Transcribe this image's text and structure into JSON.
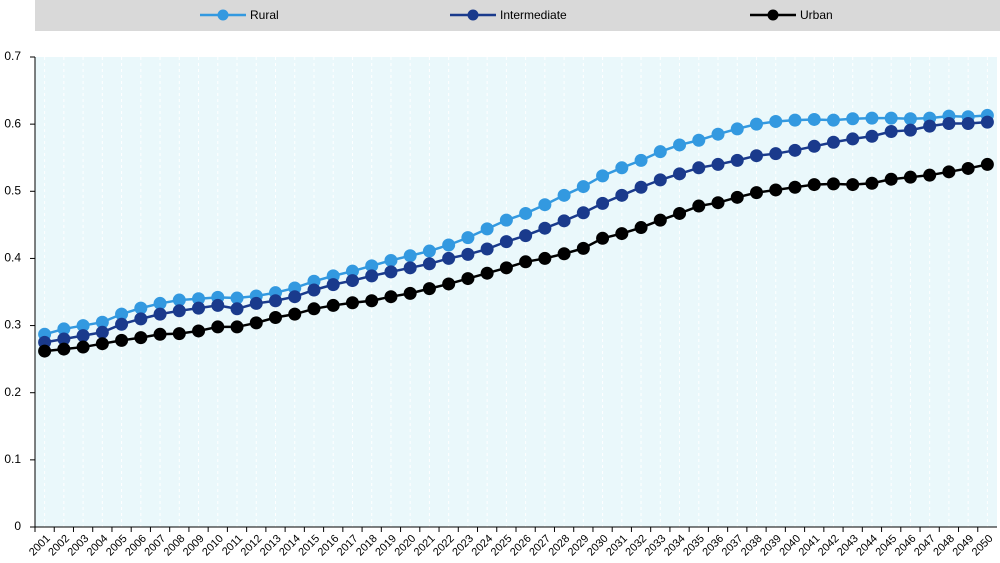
{
  "chart_data": {
    "type": "line",
    "categories": [
      "2001",
      "2002",
      "2003",
      "2004",
      "2005",
      "2006",
      "2007",
      "2008",
      "2009",
      "2010",
      "2011",
      "2012",
      "2013",
      "2014",
      "2015",
      "2016",
      "2017",
      "2018",
      "2019",
      "2020",
      "2021",
      "2022",
      "2023",
      "2024",
      "2025",
      "2026",
      "2027",
      "2028",
      "2029",
      "2030",
      "2031",
      "2032",
      "2033",
      "2034",
      "2035",
      "2036",
      "2037",
      "2038",
      "2039",
      "2040",
      "2041",
      "2042",
      "2043",
      "2044",
      "2045",
      "2046",
      "2047",
      "2048",
      "2049",
      "2050"
    ],
    "series": [
      {
        "name": "Rural",
        "color": "#3399e0",
        "values": [
          0.287,
          0.295,
          0.3,
          0.305,
          0.317,
          0.326,
          0.333,
          0.338,
          0.34,
          0.342,
          0.341,
          0.344,
          0.349,
          0.356,
          0.366,
          0.374,
          0.381,
          0.389,
          0.397,
          0.404,
          0.411,
          0.42,
          0.431,
          0.444,
          0.457,
          0.467,
          0.48,
          0.494,
          0.507,
          0.523,
          0.535,
          0.546,
          0.559,
          0.569,
          0.576,
          0.585,
          0.593,
          0.6,
          0.604,
          0.606,
          0.607,
          0.606,
          0.608,
          0.609,
          0.609,
          0.608,
          0.609,
          0.612,
          0.611,
          0.613
        ]
      },
      {
        "name": "Intermediate",
        "color": "#1a3a8c",
        "values": [
          0.275,
          0.28,
          0.285,
          0.29,
          0.302,
          0.31,
          0.317,
          0.322,
          0.326,
          0.33,
          0.325,
          0.333,
          0.337,
          0.343,
          0.353,
          0.361,
          0.367,
          0.374,
          0.38,
          0.386,
          0.392,
          0.4,
          0.406,
          0.414,
          0.425,
          0.434,
          0.445,
          0.456,
          0.468,
          0.482,
          0.494,
          0.506,
          0.517,
          0.526,
          0.535,
          0.54,
          0.546,
          0.553,
          0.556,
          0.561,
          0.567,
          0.573,
          0.578,
          0.582,
          0.589,
          0.591,
          0.597,
          0.601,
          0.601,
          0.603
        ]
      },
      {
        "name": "Urban",
        "color": "#000000",
        "values": [
          0.262,
          0.265,
          0.268,
          0.273,
          0.278,
          0.282,
          0.287,
          0.288,
          0.292,
          0.298,
          0.298,
          0.304,
          0.312,
          0.317,
          0.325,
          0.33,
          0.334,
          0.337,
          0.343,
          0.348,
          0.355,
          0.362,
          0.37,
          0.378,
          0.386,
          0.395,
          0.4,
          0.407,
          0.415,
          0.43,
          0.437,
          0.446,
          0.457,
          0.467,
          0.478,
          0.483,
          0.491,
          0.498,
          0.502,
          0.506,
          0.51,
          0.511,
          0.51,
          0.512,
          0.518,
          0.521,
          0.524,
          0.529,
          0.534,
          0.54
        ]
      }
    ],
    "ylim": [
      0,
      0.7
    ],
    "yticks": [
      0,
      0.1,
      0.2,
      0.3,
      0.4,
      0.5,
      0.6,
      0.7
    ],
    "grid": true
  }
}
